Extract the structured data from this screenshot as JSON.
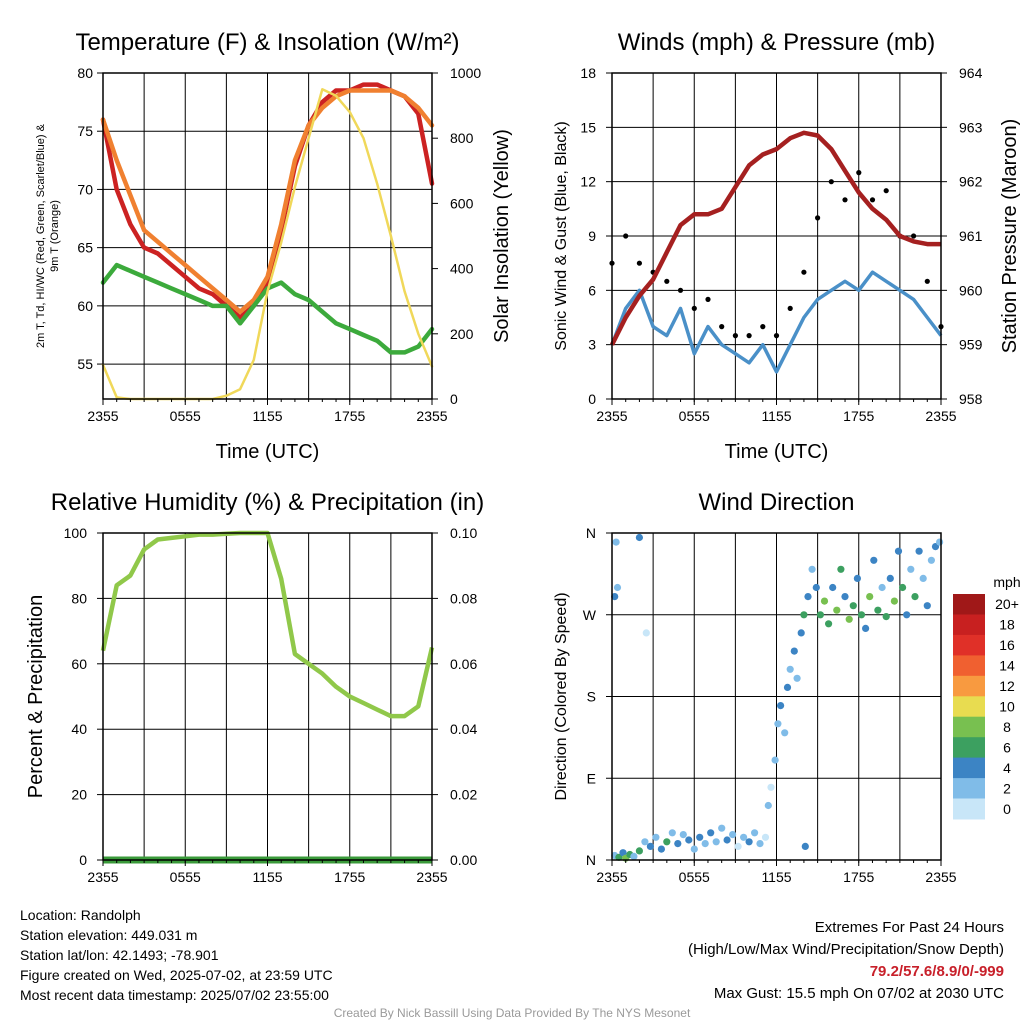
{
  "chart_data": [
    {
      "type": "line",
      "title": "Temperature (F) & Insolation (W/m²)",
      "xlabel": "Time (UTC)",
      "ylabel": "2m T, Td, HI/WC (Red, Green, Scarlet/Blue) & 9m T (Orange)",
      "y2label": "Solar Insolation (Yellow)",
      "x_ticks": [
        "2355",
        "0555",
        "1155",
        "1755",
        "2355"
      ],
      "ylim": [
        52,
        80
      ],
      "y_ticks": [
        55,
        60,
        65,
        70,
        75,
        80
      ],
      "y2lim": [
        0,
        1000
      ],
      "y2_ticks": [
        0,
        200,
        400,
        600,
        800,
        1000
      ],
      "x_hours": [
        0,
        1,
        2,
        3,
        4,
        5,
        6,
        7,
        8,
        9,
        10,
        11,
        12,
        13,
        14,
        15,
        16,
        17,
        18,
        19,
        20,
        21,
        22,
        23,
        24
      ],
      "series": [
        {
          "name": "2m T",
          "color": "#cc2222",
          "axis": "left",
          "values": [
            76,
            70,
            67,
            65,
            64.5,
            63.5,
            62.5,
            61.5,
            61,
            60,
            59,
            60,
            62,
            66.5,
            72,
            75.5,
            77.5,
            78.5,
            78.5,
            79,
            79,
            78.5,
            78,
            76.5,
            70.5
          ]
        },
        {
          "name": "9m T",
          "color": "#f08030",
          "axis": "left",
          "values": [
            76,
            72.5,
            69.5,
            66.5,
            65.5,
            64.5,
            63.5,
            62.5,
            61.5,
            60.5,
            59.5,
            60.5,
            62.5,
            67,
            72.5,
            75.5,
            77,
            78,
            78.5,
            78.5,
            78.5,
            78.5,
            78,
            77,
            75.5
          ]
        },
        {
          "name": "Td",
          "color": "#3caa3c",
          "axis": "left",
          "values": [
            62,
            63.5,
            63,
            62.5,
            62,
            61.5,
            61,
            60.5,
            60,
            60,
            58.5,
            60,
            61.5,
            62,
            61,
            60.5,
            59.5,
            58.5,
            58,
            57.5,
            57,
            56,
            56,
            56.5,
            58
          ]
        },
        {
          "name": "Solar Insolation",
          "color": "#f0d85a",
          "axis": "right",
          "values": [
            105,
            5,
            0,
            0,
            0,
            0,
            0,
            0,
            0,
            10,
            30,
            120,
            330,
            480,
            650,
            800,
            950,
            930,
            880,
            800,
            660,
            500,
            330,
            200,
            100
          ]
        }
      ]
    },
    {
      "type": "line",
      "title": "Winds (mph) & Pressure (mb)",
      "xlabel": "Time (UTC)",
      "ylabel": "Sonic Wind & Gust (Blue, Black)",
      "y2label": "Station Pressure (Maroon)",
      "x_ticks": [
        "2355",
        "0555",
        "1155",
        "1755",
        "2355"
      ],
      "ylim": [
        0,
        18
      ],
      "y_ticks": [
        0,
        3,
        6,
        9,
        12,
        15,
        18
      ],
      "y2lim": [
        958,
        964
      ],
      "y2_ticks": [
        958,
        959,
        960,
        961,
        962,
        963,
        964
      ],
      "x_hours": [
        0,
        1,
        2,
        3,
        4,
        5,
        6,
        7,
        8,
        9,
        10,
        11,
        12,
        13,
        14,
        15,
        16,
        17,
        18,
        19,
        20,
        21,
        22,
        23,
        24
      ],
      "series": [
        {
          "name": "Sonic Wind",
          "color": "#4a90c8",
          "axis": "left",
          "values": [
            3,
            5,
            6,
            4,
            3.5,
            5,
            2.5,
            4,
            3,
            2.5,
            2,
            3,
            1.5,
            3,
            4.5,
            5.5,
            6,
            6.5,
            6,
            7,
            6.5,
            6,
            5.5,
            4.5,
            3.5
          ]
        },
        {
          "name": "Gust",
          "color": "#000000",
          "axis": "left",
          "values": [
            7.5,
            9,
            7.5,
            7,
            6.5,
            6,
            5,
            5.5,
            4,
            3.5,
            3.5,
            4,
            3.5,
            5,
            7,
            10,
            12,
            11,
            12.5,
            11,
            11.5,
            9,
            9,
            6.5,
            4
          ]
        },
        {
          "name": "Station Pressure",
          "color": "#a52020",
          "axis": "right",
          "values": [
            959,
            959.5,
            959.9,
            960.2,
            960.7,
            961.2,
            961.4,
            961.4,
            961.5,
            961.9,
            962.3,
            962.5,
            962.6,
            962.8,
            962.9,
            962.85,
            962.6,
            962.2,
            961.8,
            961.5,
            961.3,
            961.0,
            960.9,
            960.85,
            960.85
          ]
        }
      ]
    },
    {
      "type": "line",
      "title": "Relative Humidity (%) & Precipitation (in)",
      "xlabel": "",
      "ylabel": "Percent & Precipitation",
      "x_ticks": [
        "2355",
        "0555",
        "1155",
        "1755",
        "2355"
      ],
      "ylim": [
        0,
        100
      ],
      "y_ticks": [
        0,
        20,
        40,
        60,
        80,
        100
      ],
      "y2lim": [
        0,
        0.1
      ],
      "y2_ticks": [
        "0.00",
        "0.02",
        "0.04",
        "0.06",
        "0.08",
        "0.10"
      ],
      "x_hours": [
        0,
        1,
        2,
        3,
        4,
        5,
        6,
        7,
        8,
        9,
        10,
        11,
        12,
        13,
        14,
        15,
        16,
        17,
        18,
        19,
        20,
        21,
        22,
        23,
        24
      ],
      "series": [
        {
          "name": "Relative Humidity",
          "color": "#90c84a",
          "axis": "left",
          "values": [
            64,
            84,
            87,
            95,
            98,
            98.5,
            99,
            99.5,
            99.5,
            99.8,
            100,
            100,
            100,
            86,
            63,
            60,
            57,
            53,
            50,
            48,
            46,
            44,
            44,
            47,
            65
          ]
        },
        {
          "name": "Precipitation",
          "color": "#3a9a3a",
          "axis": "right",
          "values": [
            0,
            0,
            0,
            0,
            0,
            0,
            0,
            0,
            0,
            0,
            0,
            0,
            0,
            0,
            0,
            0,
            0,
            0,
            0,
            0,
            0,
            0,
            0,
            0,
            0
          ]
        }
      ]
    },
    {
      "type": "scatter",
      "title": "Wind Direction",
      "xlabel": "",
      "ylabel": "Direction (Colored By Speed)",
      "x_ticks": [
        "2355",
        "0555",
        "1155",
        "1755",
        "2355"
      ],
      "y_ticks": [
        "N",
        "E",
        "S",
        "W",
        "N"
      ],
      "ylim": [
        0,
        360
      ],
      "colorbar": {
        "title": "mph",
        "labels": [
          "20+",
          "18",
          "16",
          "14",
          "12",
          "10",
          "8",
          "6",
          "4",
          "2",
          "0"
        ],
        "colors": [
          "#a01818",
          "#c82020",
          "#e03028",
          "#f06030",
          "#f89a40",
          "#e8dc50",
          "#78c050",
          "#3ca060",
          "#3c84c4",
          "#80bce8",
          "#c8e6f8"
        ]
      },
      "points": [
        {
          "x": 0.2,
          "y": 5,
          "c": "#80bce8"
        },
        {
          "x": 0.5,
          "y": 3,
          "c": "#3ca060"
        },
        {
          "x": 0.8,
          "y": 8,
          "c": "#3c84c4"
        },
        {
          "x": 1.0,
          "y": 2,
          "c": "#78c050"
        },
        {
          "x": 1.3,
          "y": 6,
          "c": "#3ca060"
        },
        {
          "x": 1.6,
          "y": 4,
          "c": "#80bce8"
        },
        {
          "x": 0.3,
          "y": 350,
          "c": "#80bce8"
        },
        {
          "x": 0.2,
          "y": 290,
          "c": "#3c84c4"
        },
        {
          "x": 0.4,
          "y": 300,
          "c": "#80bce8"
        },
        {
          "x": 2.0,
          "y": 355,
          "c": "#3c84c4"
        },
        {
          "x": 2.5,
          "y": 250,
          "c": "#c8e6f8"
        },
        {
          "x": 2.0,
          "y": 10,
          "c": "#3ca060"
        },
        {
          "x": 2.4,
          "y": 20,
          "c": "#80bce8"
        },
        {
          "x": 2.8,
          "y": 15,
          "c": "#3c84c4"
        },
        {
          "x": 3.2,
          "y": 25,
          "c": "#80bce8"
        },
        {
          "x": 3.6,
          "y": 12,
          "c": "#3c84c4"
        },
        {
          "x": 4.0,
          "y": 20,
          "c": "#3ca060"
        },
        {
          "x": 4.4,
          "y": 30,
          "c": "#80bce8"
        },
        {
          "x": 4.8,
          "y": 18,
          "c": "#3c84c4"
        },
        {
          "x": 5.2,
          "y": 28,
          "c": "#80bce8"
        },
        {
          "x": 5.6,
          "y": 22,
          "c": "#3c84c4"
        },
        {
          "x": 6.0,
          "y": 12,
          "c": "#80bce8"
        },
        {
          "x": 6.4,
          "y": 25,
          "c": "#3c84c4"
        },
        {
          "x": 6.8,
          "y": 18,
          "c": "#80bce8"
        },
        {
          "x": 7.2,
          "y": 30,
          "c": "#3c84c4"
        },
        {
          "x": 7.6,
          "y": 20,
          "c": "#80bce8"
        },
        {
          "x": 8.0,
          "y": 35,
          "c": "#80bce8"
        },
        {
          "x": 8.4,
          "y": 22,
          "c": "#3c84c4"
        },
        {
          "x": 8.8,
          "y": 28,
          "c": "#80bce8"
        },
        {
          "x": 9.2,
          "y": 15,
          "c": "#c8e6f8"
        },
        {
          "x": 9.6,
          "y": 25,
          "c": "#80bce8"
        },
        {
          "x": 10.0,
          "y": 20,
          "c": "#3c84c4"
        },
        {
          "x": 10.4,
          "y": 30,
          "c": "#80bce8"
        },
        {
          "x": 10.8,
          "y": 18,
          "c": "#80bce8"
        },
        {
          "x": 11.2,
          "y": 25,
          "c": "#c8e6f8"
        },
        {
          "x": 11.4,
          "y": 60,
          "c": "#80bce8"
        },
        {
          "x": 11.6,
          "y": 80,
          "c": "#c8e6f8"
        },
        {
          "x": 11.9,
          "y": 110,
          "c": "#80bce8"
        },
        {
          "x": 12.1,
          "y": 150,
          "c": "#80bce8"
        },
        {
          "x": 12.3,
          "y": 170,
          "c": "#3c84c4"
        },
        {
          "x": 12.6,
          "y": 140,
          "c": "#80bce8"
        },
        {
          "x": 12.8,
          "y": 190,
          "c": "#3c84c4"
        },
        {
          "x": 13.0,
          "y": 210,
          "c": "#80bce8"
        },
        {
          "x": 13.3,
          "y": 230,
          "c": "#3c84c4"
        },
        {
          "x": 13.5,
          "y": 200,
          "c": "#80bce8"
        },
        {
          "x": 13.8,
          "y": 250,
          "c": "#3c84c4"
        },
        {
          "x": 14.0,
          "y": 270,
          "c": "#3ca060"
        },
        {
          "x": 14.3,
          "y": 290,
          "c": "#3c84c4"
        },
        {
          "x": 14.6,
          "y": 320,
          "c": "#80bce8"
        },
        {
          "x": 14.9,
          "y": 300,
          "c": "#3c84c4"
        },
        {
          "x": 15.2,
          "y": 270,
          "c": "#3ca060"
        },
        {
          "x": 15.5,
          "y": 285,
          "c": "#78c050"
        },
        {
          "x": 15.8,
          "y": 260,
          "c": "#3ca060"
        },
        {
          "x": 16.1,
          "y": 300,
          "c": "#3c84c4"
        },
        {
          "x": 16.4,
          "y": 275,
          "c": "#78c050"
        },
        {
          "x": 16.7,
          "y": 320,
          "c": "#3ca060"
        },
        {
          "x": 17.0,
          "y": 290,
          "c": "#3c84c4"
        },
        {
          "x": 17.3,
          "y": 265,
          "c": "#78c050"
        },
        {
          "x": 17.6,
          "y": 280,
          "c": "#3ca060"
        },
        {
          "x": 17.9,
          "y": 310,
          "c": "#3c84c4"
        },
        {
          "x": 18.2,
          "y": 270,
          "c": "#3ca060"
        },
        {
          "x": 18.5,
          "y": 255,
          "c": "#3c84c4"
        },
        {
          "x": 18.8,
          "y": 290,
          "c": "#78c050"
        },
        {
          "x": 19.1,
          "y": 330,
          "c": "#3c84c4"
        },
        {
          "x": 19.4,
          "y": 275,
          "c": "#3ca060"
        },
        {
          "x": 19.7,
          "y": 300,
          "c": "#80bce8"
        },
        {
          "x": 20.0,
          "y": 268,
          "c": "#3ca060"
        },
        {
          "x": 20.3,
          "y": 310,
          "c": "#3c84c4"
        },
        {
          "x": 20.6,
          "y": 285,
          "c": "#78c050"
        },
        {
          "x": 20.9,
          "y": 340,
          "c": "#3c84c4"
        },
        {
          "x": 21.2,
          "y": 300,
          "c": "#3ca060"
        },
        {
          "x": 21.5,
          "y": 270,
          "c": "#3c84c4"
        },
        {
          "x": 21.8,
          "y": 320,
          "c": "#80bce8"
        },
        {
          "x": 22.1,
          "y": 290,
          "c": "#3ca060"
        },
        {
          "x": 22.4,
          "y": 340,
          "c": "#3c84c4"
        },
        {
          "x": 22.7,
          "y": 310,
          "c": "#80bce8"
        },
        {
          "x": 23.0,
          "y": 280,
          "c": "#3c84c4"
        },
        {
          "x": 23.3,
          "y": 330,
          "c": "#80bce8"
        },
        {
          "x": 23.6,
          "y": 345,
          "c": "#3c84c4"
        },
        {
          "x": 23.9,
          "y": 350,
          "c": "#80bce8"
        },
        {
          "x": 14.1,
          "y": 15,
          "c": "#3c84c4"
        }
      ]
    }
  ],
  "info": {
    "location": "Location: Randolph",
    "elevation": "Station elevation: 449.031 m",
    "latlon": "Station lat/lon: 42.1493; -78.901",
    "created": "Figure created on Wed, 2025-07-02, at 23:59 UTC",
    "recent": "Most recent data timestamp: 2025/07/02 23:55:00"
  },
  "extremes": {
    "title": "Extremes For Past 24 Hours",
    "legend": "(High/Low/Max Wind/Precipitation/Snow Depth)",
    "values": "79.2/57.6/8.9/0/-999",
    "gust": "Max Gust: 15.5 mph On 07/02 at 2030 UTC"
  },
  "credit": "Created By Nick Bassill Using Data Provided By The NYS Mesonet"
}
